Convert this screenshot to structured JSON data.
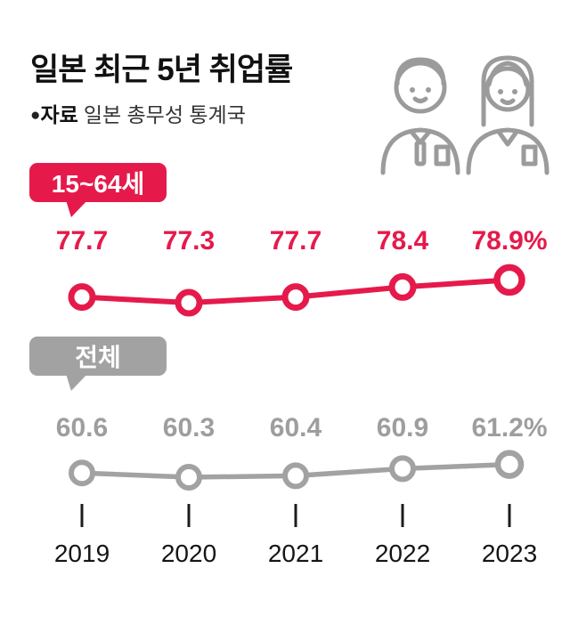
{
  "header": {
    "title": "일본 최근 5년 취업률",
    "source_bullet": "●",
    "source_label": "자료",
    "source_text": "일본 총무성 통계국"
  },
  "colors": {
    "red": "#e51a4b",
    "gray_line": "#a2a2a2",
    "gray_text": "#9e9e9e",
    "dark": "#1c1c1c"
  },
  "chart_data": {
    "type": "line",
    "title": "일본 최근 5년 취업률",
    "categories": [
      "2019",
      "2020",
      "2021",
      "2022",
      "2023"
    ],
    "series": [
      {
        "name": "15~64세",
        "color": "#e51a4b",
        "values": [
          77.7,
          77.3,
          77.7,
          78.4,
          78.9
        ],
        "labels": [
          "77.7",
          "77.3",
          "77.7",
          "78.4",
          "78.9%"
        ]
      },
      {
        "name": "전체",
        "color": "#a2a2a2",
        "values": [
          60.6,
          60.3,
          60.4,
          60.9,
          61.2
        ],
        "labels": [
          "60.6",
          "60.3",
          "60.4",
          "60.9",
          "61.2%"
        ]
      }
    ],
    "legend_position": "badges-left",
    "grid": false,
    "unit_suffix_on_last": "%"
  }
}
